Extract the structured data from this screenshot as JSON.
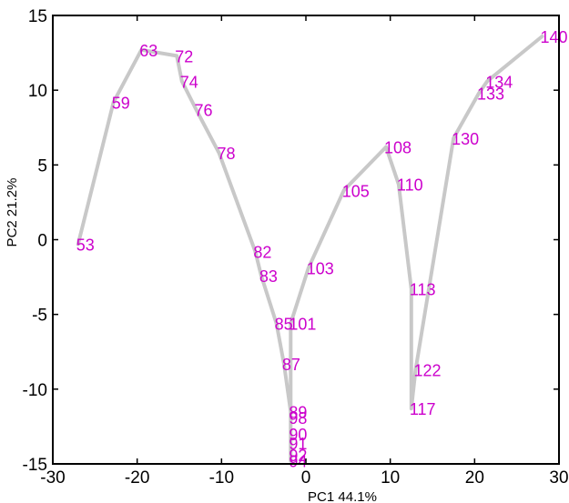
{
  "chart_data": {
    "type": "line",
    "xlabel": "PC1 44.1%",
    "ylabel": "PC2 21.2%",
    "xlim": [
      -30,
      30
    ],
    "ylim": [
      -15,
      15
    ],
    "xticks": [
      -30,
      -20,
      -10,
      0,
      10,
      20,
      30
    ],
    "yticks": [
      -15,
      -10,
      -5,
      0,
      5,
      10,
      15
    ],
    "grid": false,
    "line_color": "#c8c8c8",
    "label_color": "#cc00cc",
    "series": [
      {
        "points": [
          {
            "label": "53",
            "x": -27.0,
            "y": -0.3
          },
          {
            "label": "59",
            "x": -22.8,
            "y": 9.2
          },
          {
            "label": "63",
            "x": -19.5,
            "y": 12.7
          },
          {
            "label": "72",
            "x": -15.3,
            "y": 12.3
          },
          {
            "label": "74",
            "x": -14.7,
            "y": 10.6
          },
          {
            "label": "76",
            "x": -13.0,
            "y": 8.7
          },
          {
            "label": "78",
            "x": -10.3,
            "y": 5.8
          },
          {
            "label": "82",
            "x": -6.0,
            "y": -0.8
          },
          {
            "label": "83",
            "x": -5.3,
            "y": -2.4
          },
          {
            "label": "85",
            "x": -3.5,
            "y": -5.6
          },
          {
            "label": "87",
            "x": -2.6,
            "y": -8.3
          },
          {
            "label": "89",
            "x": -1.8,
            "y": -11.5
          },
          {
            "label": "90",
            "x": -1.8,
            "y": -13.0
          },
          {
            "label": "91",
            "x": -1.8,
            "y": -13.6
          },
          {
            "label": "92",
            "x": -1.8,
            "y": -14.4
          },
          {
            "label": "94",
            "x": -1.8,
            "y": -14.8
          },
          {
            "label": "98",
            "x": -1.8,
            "y": -11.9
          },
          {
            "label": "101",
            "x": -1.8,
            "y": -5.6
          },
          {
            "label": "103",
            "x": 0.3,
            "y": -1.9
          },
          {
            "label": "105",
            "x": 4.5,
            "y": 3.3
          },
          {
            "label": "108",
            "x": 9.5,
            "y": 6.2
          },
          {
            "label": "110",
            "x": 11.0,
            "y": 3.7
          },
          {
            "label": "113",
            "x": 12.5,
            "y": -3.3
          },
          {
            "label": "117",
            "x": 12.5,
            "y": -11.3
          },
          {
            "label": "122",
            "x": 13.0,
            "y": -8.7
          },
          {
            "label": "130",
            "x": 17.5,
            "y": 6.8
          },
          {
            "label": "133",
            "x": 20.5,
            "y": 9.8
          },
          {
            "label": "134",
            "x": 21.5,
            "y": 10.6
          },
          {
            "label": "140",
            "x": 28.0,
            "y": 13.6
          }
        ]
      }
    ]
  }
}
